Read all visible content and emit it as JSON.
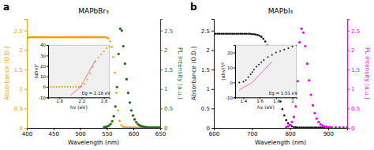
{
  "chart_data": [
    {
      "type": "scatter",
      "title": "MAPbBr₃",
      "annotations": [
        "a"
      ],
      "xlabel": "Wavelength (nm)",
      "ylabel": "Absorbance (O.D.)",
      "y2label": "PL intensity (a.u.)",
      "xlim": [
        400,
        650
      ],
      "xticks": [
        400,
        450,
        500,
        550,
        600,
        650
      ],
      "ylim": [
        0,
        2.8
      ],
      "yticks": [
        0,
        0.5,
        1,
        1.5,
        2,
        2.5
      ],
      "y2lim": [
        0,
        2.8
      ],
      "y2ticks": [
        0,
        0.5,
        1,
        1.5,
        2,
        2.5
      ],
      "series": [
        {
          "color": "#F59A00",
          "x": [
            400,
            403,
            406,
            409,
            412,
            415,
            418,
            421,
            424,
            427,
            430,
            433,
            436,
            439,
            442,
            445,
            448,
            451,
            454,
            457,
            460,
            463,
            466,
            469,
            472,
            475,
            478,
            481,
            484,
            487,
            490,
            493,
            496,
            499,
            502,
            505,
            508,
            511,
            514,
            517,
            520,
            523,
            526,
            529,
            532,
            535,
            538,
            541,
            544,
            547,
            550,
            553,
            556,
            559,
            562,
            565,
            568,
            571,
            574,
            577,
            580,
            583,
            586,
            589,
            592,
            595,
            598,
            601,
            604,
            607,
            610,
            613,
            616,
            619,
            622,
            625,
            628,
            631,
            634,
            637,
            640,
            643,
            646,
            649
          ],
          "values": [
            2.32,
            2.32,
            2.33,
            2.33,
            2.33,
            2.33,
            2.33,
            2.33,
            2.33,
            2.33,
            2.33,
            2.33,
            2.33,
            2.33,
            2.33,
            2.33,
            2.33,
            2.33,
            2.33,
            2.33,
            2.33,
            2.33,
            2.33,
            2.33,
            2.33,
            2.33,
            2.33,
            2.33,
            2.33,
            2.33,
            2.33,
            2.33,
            2.33,
            2.33,
            2.33,
            2.33,
            2.33,
            2.33,
            2.33,
            2.33,
            2.33,
            2.33,
            2.33,
            2.33,
            2.33,
            2.33,
            2.33,
            2.33,
            2.33,
            2.33,
            2.32,
            2.3,
            2.22,
            2.08,
            1.82,
            1.42,
            0.9,
            0.45,
            0.18,
            0.07,
            0.03,
            0.02,
            0.01,
            0.01,
            0.01,
            0.01,
            0.01,
            0.01,
            0.01,
            0.01,
            0.01,
            0.01,
            0.01,
            0.01,
            0.01,
            0.01,
            0.01,
            0.01,
            0.01,
            0.01,
            0.01,
            0.01,
            0.01,
            0.01
          ]
        },
        {
          "color": "#1A6B1A",
          "axis": "y2",
          "x": [
            545,
            548,
            551,
            554,
            557,
            560,
            563,
            566,
            569,
            572,
            575,
            578,
            581,
            584,
            587,
            590,
            593,
            596,
            599,
            602,
            605,
            608,
            611,
            614,
            617,
            620,
            623,
            626,
            629,
            632,
            635,
            638,
            641,
            644,
            647,
            650
          ],
          "values": [
            0.02,
            0.03,
            0.04,
            0.06,
            0.1,
            0.17,
            0.3,
            0.55,
            1.05,
            1.9,
            2.55,
            2.5,
            2.1,
            1.65,
            1.25,
            0.9,
            0.65,
            0.45,
            0.32,
            0.22,
            0.15,
            0.1,
            0.07,
            0.05,
            0.04,
            0.03,
            0.02,
            0.02,
            0.01,
            0.01,
            0.01,
            0.01,
            0.01,
            0.01,
            0.01,
            0.01
          ]
        }
      ]
    },
    {
      "type": "scatter",
      "annotations": [
        "Eg = 2.18 eV"
      ],
      "xlabel": "hv (eV)",
      "ylabel": "(αhv)²",
      "xlim": [
        1.6,
        2.7
      ],
      "xticks": [
        1.8,
        2.2,
        2.6
      ],
      "ylim": [
        -10,
        40
      ],
      "yticks": [
        -10,
        0,
        10,
        20,
        30,
        40
      ],
      "series": [
        {
          "color": "#F59A00",
          "x": [
            1.6,
            1.65,
            1.7,
            1.75,
            1.8,
            1.85,
            1.9,
            1.95,
            2.0,
            2.05,
            2.1,
            2.15,
            2.18,
            2.2,
            2.25,
            2.3,
            2.35,
            2.4,
            2.45,
            2.5,
            2.55,
            2.6,
            2.65,
            2.7
          ],
          "values": [
            0,
            0,
            0,
            0,
            0,
            0,
            0,
            0,
            0,
            0,
            0,
            0,
            0,
            0.5,
            3,
            7,
            13,
            19,
            24,
            28,
            31,
            34,
            37,
            39
          ]
        },
        {
          "type": "line",
          "color": "#FF69B4",
          "x": [
            2.0,
            2.18
          ],
          "values": [
            -8,
            0
          ]
        },
        {
          "type": "line",
          "color": "#FF69B4",
          "x": [
            2.18,
            2.45
          ],
          "values": [
            0,
            26
          ]
        }
      ]
    },
    {
      "type": "scatter",
      "title": "MAPbI₃",
      "annotations": [
        "b"
      ],
      "xlabel": "Wavelength (nm)",
      "ylabel": "Absorbance (O.D.)",
      "y2label": "PL intensity (a.u.)",
      "xlim": [
        600,
        950
      ],
      "xticks": [
        600,
        700,
        800,
        900
      ],
      "ylim": [
        0,
        2.8
      ],
      "yticks": [
        0,
        0.5,
        1,
        1.5,
        2,
        2.5
      ],
      "y2lim": [
        0,
        2.8
      ],
      "y2ticks": [
        0,
        0.5,
        1,
        1.5,
        2,
        2.5
      ],
      "series": [
        {
          "color": "#111111",
          "x": [
            600,
            605,
            610,
            615,
            620,
            625,
            630,
            635,
            640,
            645,
            650,
            655,
            660,
            665,
            670,
            675,
            680,
            685,
            690,
            695,
            700,
            705,
            710,
            715,
            720,
            725,
            730,
            735,
            740,
            745,
            750,
            755,
            760,
            765,
            770,
            775,
            780,
            785,
            790,
            795,
            800,
            805,
            810,
            815,
            820,
            825,
            830,
            835,
            840,
            845,
            850,
            855,
            860,
            865,
            870,
            875,
            880,
            885,
            890,
            895,
            900,
            910,
            920,
            930,
            940,
            950
          ],
          "values": [
            2.42,
            2.42,
            2.42,
            2.42,
            2.42,
            2.42,
            2.42,
            2.42,
            2.42,
            2.42,
            2.42,
            2.42,
            2.42,
            2.42,
            2.42,
            2.42,
            2.42,
            2.42,
            2.42,
            2.42,
            2.41,
            2.41,
            2.4,
            2.39,
            2.37,
            2.34,
            2.29,
            2.22,
            2.12,
            1.98,
            1.8,
            1.6,
            1.38,
            1.14,
            0.9,
            0.68,
            0.48,
            0.32,
            0.2,
            0.12,
            0.07,
            0.04,
            0.02,
            0.02,
            0.01,
            0.01,
            0.01,
            0.01,
            0.01,
            0.01,
            0.01,
            0.01,
            0.01,
            0.01,
            0.01,
            0.01,
            0.01,
            0.01,
            0.01,
            0.01,
            0.01,
            0.01,
            0.01,
            0.01,
            0.01,
            0.01
          ]
        },
        {
          "color": "#EE00EE",
          "axis": "y2",
          "x": [
            790,
            795,
            800,
            805,
            810,
            815,
            820,
            825,
            830,
            835,
            840,
            845,
            850,
            855,
            860,
            865,
            870,
            875,
            880,
            885,
            890,
            895,
            900,
            905,
            910,
            920,
            930,
            940,
            950
          ],
          "values": [
            0.02,
            0.04,
            0.08,
            0.15,
            0.28,
            0.55,
            1.2,
            2.2,
            2.55,
            2.45,
            2.1,
            1.65,
            1.22,
            0.85,
            0.58,
            0.38,
            0.24,
            0.15,
            0.09,
            0.06,
            0.04,
            0.03,
            0.02,
            0.02,
            0.01,
            0.01,
            0.01,
            0.01,
            0.01
          ]
        }
      ]
    },
    {
      "type": "scatter",
      "annotations": [
        "Eg = 1.51 eV"
      ],
      "xlabel": "hv (eV)",
      "ylabel": "(αhv)¹/²",
      "xlim": [
        1.3,
        2.05
      ],
      "xticks": [
        1.4,
        1.6,
        1.8,
        2
      ],
      "ylim": [
        -10,
        25
      ],
      "yticks": [
        -10,
        0,
        10,
        20
      ],
      "series": [
        {
          "color": "#111111",
          "x": [
            1.3,
            1.35,
            1.4,
            1.43,
            1.46,
            1.49,
            1.51,
            1.53,
            1.56,
            1.59,
            1.62,
            1.65,
            1.7,
            1.75,
            1.8,
            1.85,
            1.9,
            1.95,
            2.0,
            2.05
          ],
          "values": [
            0,
            0,
            0.5,
            1.5,
            3.5,
            5.5,
            7,
            8.5,
            10.5,
            12,
            13.5,
            15,
            17,
            18.5,
            20,
            21,
            22,
            23,
            24,
            25
          ]
        },
        {
          "type": "line",
          "color": "#FF69B4",
          "x": [
            1.35,
            1.51
          ],
          "values": [
            -5,
            0
          ]
        },
        {
          "type": "line",
          "color": "#FF69B4",
          "x": [
            1.51,
            1.75
          ],
          "values": [
            0,
            14
          ]
        }
      ]
    }
  ]
}
